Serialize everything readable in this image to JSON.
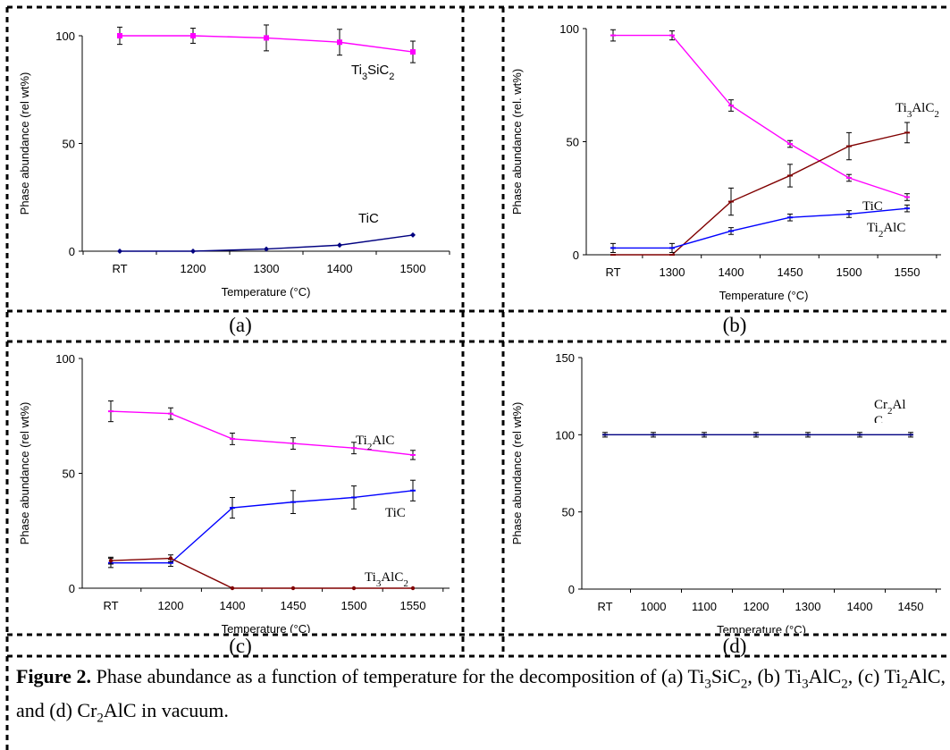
{
  "figure": {
    "caption_label": "Figure 2.",
    "caption_parts": [
      {
        "t": " Phase abundance as a function of temperature for the decomposition of (a) Ti"
      },
      {
        "t": "3",
        "sub": true
      },
      {
        "t": "SiC"
      },
      {
        "t": "2",
        "sub": true
      },
      {
        "t": ", (b) Ti"
      },
      {
        "t": "3",
        "sub": true
      },
      {
        "t": "AlC"
      },
      {
        "t": "2",
        "sub": true
      },
      {
        "t": ", (c) Ti"
      },
      {
        "t": "2",
        "sub": true
      },
      {
        "t": "AlC, and (d) Cr"
      },
      {
        "t": "2",
        "sub": true
      },
      {
        "t": "AlC in vacuum."
      }
    ]
  },
  "panel_labels": [
    "(a)",
    "(b)",
    "(c)",
    "(d)"
  ],
  "colors": {
    "magenta": "#FF00FF",
    "navy": "#000080",
    "brown": "#800000",
    "blue": "#0000FF"
  },
  "chart_data": [
    {
      "id": "a",
      "type": "line",
      "categories": [
        "RT",
        "1200",
        "1300",
        "1400",
        "1500"
      ],
      "xlabel": "Temperature (°C)",
      "ylabel": "Phase abundance (rel wt%)",
      "ylim": [
        0,
        100
      ],
      "yticks": [
        0,
        50,
        100
      ],
      "series": [
        {
          "name": "Ti3SiC2",
          "label_parts": [
            {
              "t": "Ti"
            },
            {
              "t": "3",
              "sub": true
            },
            {
              "t": "SiC"
            },
            {
              "t": "2",
              "sub": true
            }
          ],
          "color": "#FF00FF",
          "marker": "square",
          "values": [
            100,
            100,
            99,
            97,
            92.5
          ],
          "errors": [
            4,
            3.5,
            6,
            6,
            5
          ]
        },
        {
          "name": "TiC",
          "label_parts": [
            {
              "t": "TiC"
            }
          ],
          "color": "#000080",
          "marker": "diamond",
          "values": [
            0,
            0,
            1,
            2.8,
            7.5
          ],
          "errors": [
            0,
            0,
            0,
            0,
            0
          ]
        }
      ]
    },
    {
      "id": "b",
      "type": "line",
      "categories": [
        "RT",
        "1300",
        "1400",
        "1450",
        "1500",
        "1550"
      ],
      "xlabel": "Temperature (°C)",
      "ylabel": "Phase abundance (rel. wt%)",
      "ylim": [
        0,
        100
      ],
      "yticks": [
        0,
        50,
        100
      ],
      "series": [
        {
          "name": "Ti3AlC2",
          "label_parts": [
            {
              "t": "Ti"
            },
            {
              "t": "3",
              "sub": true
            },
            {
              "t": "AlC"
            },
            {
              "t": "2",
              "sub": true
            }
          ],
          "color": "#FF00FF",
          "marker": "dash",
          "values": [
            97,
            97,
            66,
            49,
            34,
            25.5
          ],
          "errors": [
            2.5,
            2,
            2.5,
            1.5,
            1.5,
            1.5
          ]
        },
        {
          "name": "TiC",
          "label_parts": [
            {
              "t": "TiC"
            }
          ],
          "color": "#800000",
          "marker": "dash",
          "values": [
            0,
            0,
            23.5,
            35,
            48,
            54
          ],
          "errors": [
            0,
            0,
            6,
            5,
            6,
            4.5
          ]
        },
        {
          "name": "Ti2AlC",
          "label_parts": [
            {
              "t": "Ti"
            },
            {
              "t": "2",
              "sub": true
            },
            {
              "t": "AlC"
            }
          ],
          "color": "#0000FF",
          "marker": "dash",
          "values": [
            3,
            3,
            10.5,
            16.5,
            18,
            20.5
          ],
          "errors": [
            2,
            2,
            1.5,
            1.5,
            1.5,
            1.5
          ]
        }
      ]
    },
    {
      "id": "c",
      "type": "line",
      "categories": [
        "RT",
        "1200",
        "1400",
        "1450",
        "1500",
        "1550"
      ],
      "xlabel": "Temperature (°C)",
      "ylabel": "Phase abundance (rel wt%)",
      "ylim": [
        0,
        100
      ],
      "yticks": [
        0,
        50,
        100
      ],
      "series": [
        {
          "name": "Ti2AlC",
          "label_parts": [
            {
              "t": "Ti"
            },
            {
              "t": "2",
              "sub": true
            },
            {
              "t": "AlC"
            }
          ],
          "color": "#FF00FF",
          "marker": "dash",
          "values": [
            77,
            76,
            65,
            63,
            61,
            58
          ],
          "errors": [
            4.5,
            2.5,
            2.5,
            2.5,
            2.5,
            2
          ]
        },
        {
          "name": "TiC",
          "label_parts": [
            {
              "t": "TiC"
            }
          ],
          "color": "#0000FF",
          "marker": "dash",
          "values": [
            11,
            11,
            35,
            37.5,
            39.5,
            42.5
          ],
          "errors": [
            2,
            1.5,
            4.5,
            5,
            5,
            4.5
          ]
        },
        {
          "name": "Ti3AlC2",
          "label_parts": [
            {
              "t": "Ti"
            },
            {
              "t": "3",
              "sub": true
            },
            {
              "t": "AlC"
            },
            {
              "t": "2",
              "sub": true
            }
          ],
          "color": "#800000",
          "marker": "dot",
          "values": [
            12,
            13,
            0,
            0,
            0,
            0
          ],
          "errors": [
            1.5,
            1.5,
            0,
            0,
            0,
            0
          ]
        }
      ]
    },
    {
      "id": "d",
      "type": "line",
      "categories": [
        "RT",
        "1000",
        "1100",
        "1200",
        "1300",
        "1400",
        "1450"
      ],
      "xlabel": "Temperature (°C)",
      "ylabel": "Phase abundance (rel wt%)",
      "ylim": [
        0,
        150
      ],
      "yticks": [
        0,
        50,
        100,
        150
      ],
      "series": [
        {
          "name": "Cr2AlC",
          "label_parts": [
            {
              "t": "Cr"
            },
            {
              "t": "2",
              "sub": true
            },
            {
              "t": "Al"
            }
          ],
          "label_cut": "C",
          "color": "#000080",
          "marker": "dash",
          "values": [
            100,
            100,
            100,
            100,
            100,
            100,
            100
          ],
          "errors": [
            1.5,
            1.5,
            1.5,
            1.5,
            1.5,
            1.5,
            1.5
          ]
        }
      ]
    }
  ]
}
